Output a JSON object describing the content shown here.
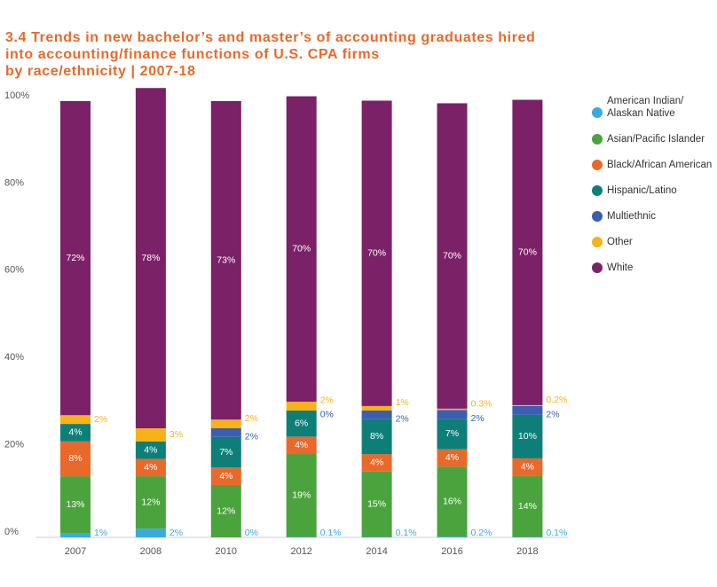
{
  "chart_data": {
    "type": "stacked_bar",
    "title": "3.4 Trends in new bachelor’s and master’s of accounting graduates hired\ninto accounting/finance functions of U.S. CPA firms\nby race/ethnicity | 2007-18",
    "categories": [
      "2007",
      "2008",
      "2010",
      "2012",
      "2014",
      "2016",
      "2018"
    ],
    "ylim": [
      0,
      100
    ],
    "yticks": [
      {
        "value": 0,
        "label": "0%"
      },
      {
        "value": 20,
        "label": "20%"
      },
      {
        "value": 40,
        "label": "40%"
      },
      {
        "value": 60,
        "label": "60%"
      },
      {
        "value": 80,
        "label": "80%"
      },
      {
        "value": 100,
        "label": "100%"
      }
    ],
    "series": [
      {
        "name": "American Indian/\nAlaskan Native",
        "color": "#3aa9e0",
        "values": [
          1,
          2,
          0,
          0.1,
          0.1,
          0.2,
          0.1
        ],
        "value_labels": [
          "1%",
          "2%",
          "0%",
          "0.1%",
          "0.1%",
          "0.2%",
          "0.1%"
        ]
      },
      {
        "name": "Asian/Pacific Islander",
        "color": "#4ba33e",
        "values": [
          13,
          12,
          12,
          19,
          15,
          16,
          14
        ],
        "value_labels": [
          "13%",
          "12%",
          "12%",
          "19%",
          "15%",
          "16%",
          "14%"
        ]
      },
      {
        "name": "Black/African American",
        "color": "#e8692a",
        "values": [
          8,
          4,
          4,
          4,
          4,
          4,
          4
        ],
        "value_labels": [
          "8%",
          "4%",
          "4%",
          "4%",
          "4%",
          "4%",
          "4%"
        ]
      },
      {
        "name": "Hispanic/Latino",
        "color": "#0e7f78",
        "values": [
          4,
          4,
          7,
          6,
          8,
          7,
          10
        ],
        "value_labels": [
          "4%",
          "4%",
          "7%",
          "6%",
          "8%",
          "7%",
          "10%"
        ]
      },
      {
        "name": "Multiethnic",
        "color": "#3a5fb0",
        "values": [
          null,
          null,
          2,
          0,
          2,
          2,
          2
        ],
        "value_labels": [
          null,
          null,
          "2%",
          "0%",
          "2%",
          "2%",
          "2%"
        ]
      },
      {
        "name": "Other",
        "color": "#f5b21a",
        "values": [
          2,
          3,
          2,
          2,
          1,
          0.3,
          0.2
        ],
        "value_labels": [
          "2%",
          "3%",
          "2%",
          "2%",
          "1%",
          "0.3%",
          "0.2%"
        ]
      },
      {
        "name": "White",
        "color": "#7b2167",
        "values": [
          72,
          78,
          73,
          70,
          70,
          70,
          70
        ],
        "value_labels": [
          "72%",
          "78%",
          "73%",
          "70%",
          "70%",
          "70%",
          "70%"
        ]
      }
    ]
  }
}
